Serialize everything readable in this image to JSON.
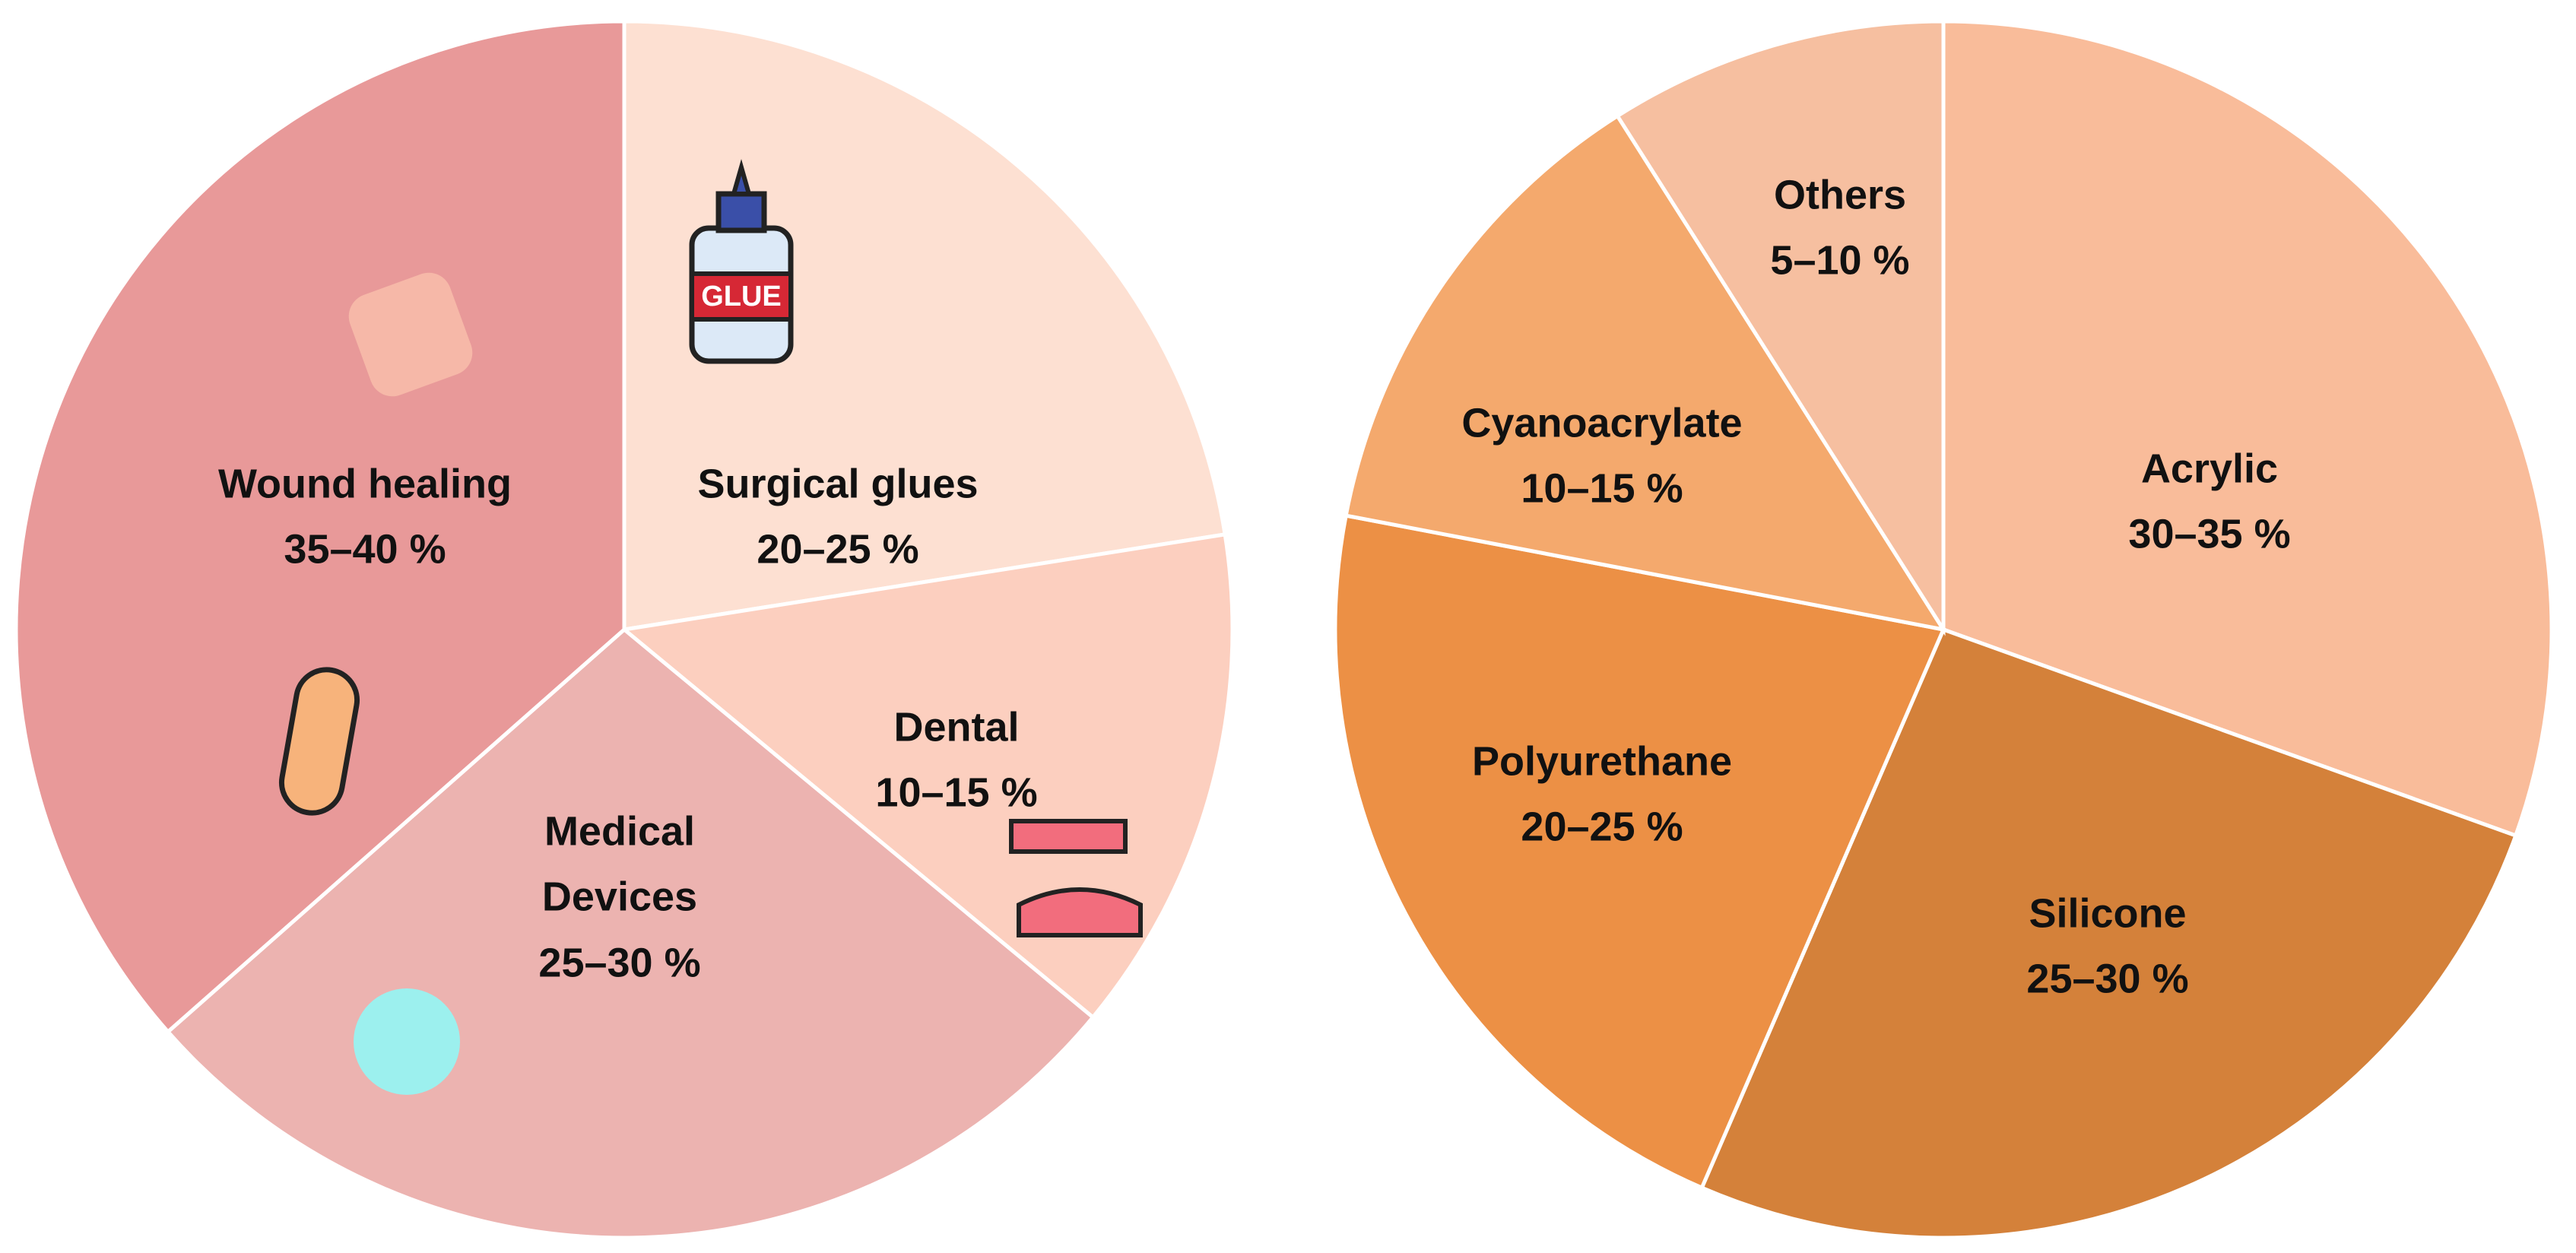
{
  "chart_data": [
    {
      "type": "pie",
      "categories": [
        "Surgical glues",
        "Dental",
        "Medical Devices",
        "Wound healing"
      ],
      "values": [
        22.5,
        13.5,
        27.5,
        36.5
      ],
      "value_labels": [
        "20–25 %",
        "10–15 %",
        "25–30 %",
        "35–40 %"
      ],
      "colors": [
        "#fde0d2",
        "#fccfbf",
        "#ecb3b0",
        "#e89999"
      ]
    },
    {
      "type": "pie",
      "categories": [
        "Acrylic",
        "Silicone",
        "Polyurethane",
        "Cyanoacrylate",
        "Others"
      ],
      "values": [
        30.5,
        26,
        21.5,
        13,
        9
      ],
      "value_labels": [
        "30–35 %",
        "25–30 %",
        "20–25 %",
        "10–15 %",
        "5–10 %"
      ],
      "colors": [
        "#f9bc9a",
        "#d4813a",
        "#ec9045",
        "#f4a96d",
        "#f6bfa0"
      ]
    }
  ],
  "icons": {
    "glue": "GLUE"
  }
}
